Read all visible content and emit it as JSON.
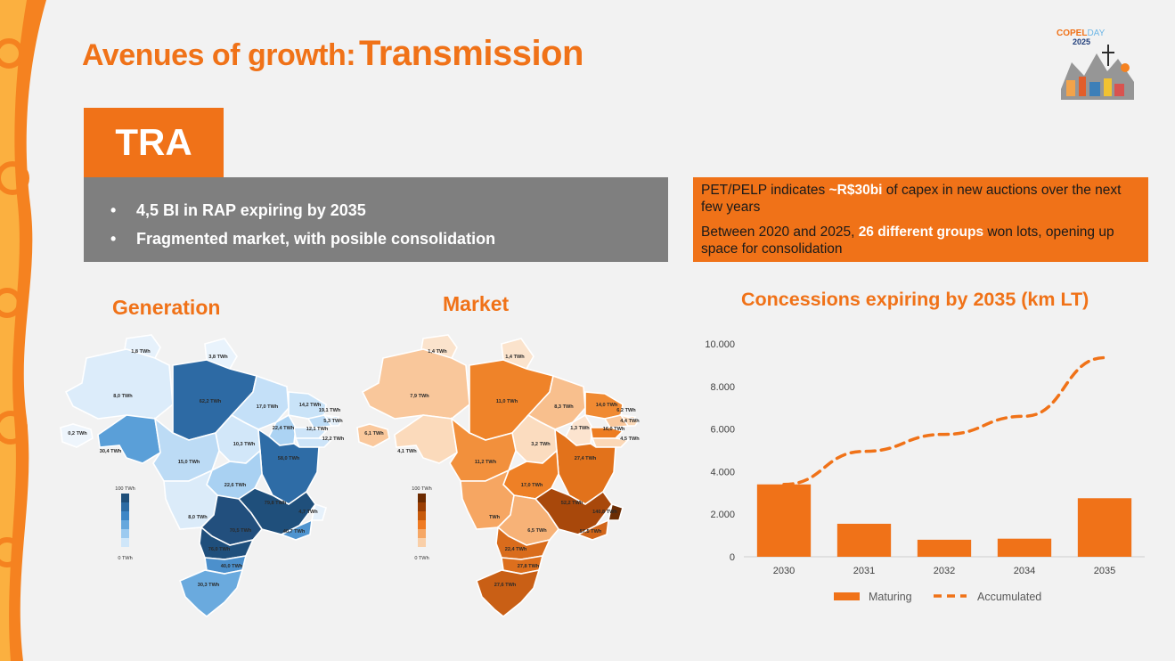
{
  "slide": {
    "title_part1": "Avenues of growth",
    "title_colon": ":",
    "title_part2": "Transmission",
    "logo_line1_a": "COPEL",
    "logo_line1_b": "DAY",
    "logo_line2": "2025",
    "section_label": "TRA",
    "bullets": [
      "4,5 BI in RAP expiring by 2035",
      "Fragmented market, with posible consolidation"
    ],
    "bullet_symbol": "•",
    "note1_a": "PET/PELP indicates ",
    "note1_b": "~R$30bi",
    "note1_c": " of capex in new auctions over the next few years",
    "note2_a": "Between 2020 and 2025, ",
    "note2_b": "26 different groups",
    "note2_c": " won lots, opening up space for consolidation"
  },
  "maps": {
    "generation": {
      "title": "Generation",
      "legend_max": "100 TWh",
      "legend_min": "0 TWh",
      "legend_colors": [
        "#1e4e79",
        "#2c6ba3",
        "#3d86c6",
        "#66a7dd",
        "#9ccaf0",
        "#cfe6f9"
      ],
      "regions": [
        {
          "label": "1,8 TWh",
          "color": "#e6f1fb"
        },
        {
          "label": "3,8 TWh",
          "color": "#e9f3fc"
        },
        {
          "label": "8,0 TWh",
          "color": "#dcecfa"
        },
        {
          "label": "62,2 TWh",
          "color": "#2d6aa4"
        },
        {
          "label": "17,0 TWh",
          "color": "#c4e0f8"
        },
        {
          "label": "14,2 TWh",
          "color": "#c9e3f8"
        },
        {
          "label": "19,1 TWh",
          "color": "#bddcf6"
        },
        {
          "label": "0,2 TWh",
          "color": "#eef5fc"
        },
        {
          "label": "22,4 TWh",
          "color": "#acd3f3"
        },
        {
          "label": "5,3 TWh",
          "color": "#e3eff9"
        },
        {
          "label": "12,1 TWh",
          "color": "#cde4f8"
        },
        {
          "label": "12,2 TWh",
          "color": "#cde4f8"
        },
        {
          "label": "30,4 TWh",
          "color": "#5a9fd8"
        },
        {
          "label": "10,3 TWh",
          "color": "#d2e7f9"
        },
        {
          "label": "15,0 TWh",
          "color": "#bcdbf5"
        },
        {
          "label": "58,0 TWh",
          "color": "#2e6ca6"
        },
        {
          "label": "22,6 TWh",
          "color": "#a9d1f2"
        },
        {
          "label": "79,8 TWh",
          "color": "#1f4f7b"
        },
        {
          "label": "8,0 TWh",
          "color": "#dbebf9"
        },
        {
          "label": "70,5 TWh",
          "color": "#224f7d"
        },
        {
          "label": "4,7 TWh",
          "color": "#e6f1fb"
        },
        {
          "label": "40,7 TWh",
          "color": "#4f94cf"
        },
        {
          "label": "76,0 TWh",
          "color": "#1f4f7c"
        },
        {
          "label": "40,0 TWh",
          "color": "#4c90cc"
        },
        {
          "label": "30,3 TWh",
          "color": "#6aaade"
        }
      ]
    },
    "market": {
      "title": "Market",
      "legend_max": "100 TWh",
      "legend_min": "0 TWh",
      "legend_colors": [
        "#6b2a00",
        "#9a3e04",
        "#c75a0b",
        "#ef7a22",
        "#f6a765",
        "#f9cfa8"
      ],
      "regions": [
        {
          "label": "1,4 TWh",
          "color": "#fbe3cc"
        },
        {
          "label": "1,4 TWh",
          "color": "#fbe3cc"
        },
        {
          "label": "7,9 TWh",
          "color": "#f9c79b"
        },
        {
          "label": "11,0 TWh",
          "color": "#ef8329"
        },
        {
          "label": "8,3 TWh",
          "color": "#f8bf8d"
        },
        {
          "label": "14,0 TWh",
          "color": "#f08a32"
        },
        {
          "label": "6,2 TWh",
          "color": "#fac89c"
        },
        {
          "label": "6,1 TWh",
          "color": "#fac89c"
        },
        {
          "label": "1,3 TWh",
          "color": "#fce4cf"
        },
        {
          "label": "4,4 TWh",
          "color": "#fbd9b8"
        },
        {
          "label": "16,0 TWh",
          "color": "#ed7d22"
        },
        {
          "label": "4,5 TWh",
          "color": "#fbd8b7"
        },
        {
          "label": "4,1 TWh",
          "color": "#fbdabb"
        },
        {
          "label": "3,2 TWh",
          "color": "#fbdcbf"
        },
        {
          "label": "11,2 TWh",
          "color": "#f2903c"
        },
        {
          "label": "27,4 TWh",
          "color": "#e2721b"
        },
        {
          "label": "17,0 TWh",
          "color": "#ee8026"
        },
        {
          "label": "52,2 TWh",
          "color": "#a8480b"
        },
        {
          "label": "TWh",
          "color": "#f6a662"
        },
        {
          "label": "6,5 TWh",
          "color": "#f7b277"
        },
        {
          "label": "140,8 TWh",
          "color": "#6b2d05"
        },
        {
          "label": "57,5 TWh",
          "color": "#d2661a"
        },
        {
          "label": "22,4 TWh",
          "color": "#d96c1c"
        },
        {
          "label": "27,8 TWh",
          "color": "#dd6f1d"
        },
        {
          "label": "27,6 TWh",
          "color": "#c95f15"
        }
      ]
    }
  },
  "chart_data": {
    "type": "bar",
    "title": "Concessions expiring by 2035 (km LT)",
    "categories": [
      "2030",
      "2031",
      "2032",
      "2034",
      "2035"
    ],
    "series": [
      {
        "name": "Maturing",
        "kind": "bar",
        "color": "#f07218",
        "values": [
          3400,
          1550,
          800,
          850,
          2750
        ]
      },
      {
        "name": "Accumulated",
        "kind": "dashed-line",
        "color": "#f07218",
        "values": [
          3400,
          4950,
          5750,
          6600,
          9350
        ]
      }
    ],
    "yticks": [
      "0",
      "2.000",
      "4.000",
      "6.000",
      "8.000",
      "10.000"
    ],
    "ylim": [
      0,
      10000
    ],
    "legend_position": "bottom",
    "xlabel": "",
    "ylabel": ""
  }
}
